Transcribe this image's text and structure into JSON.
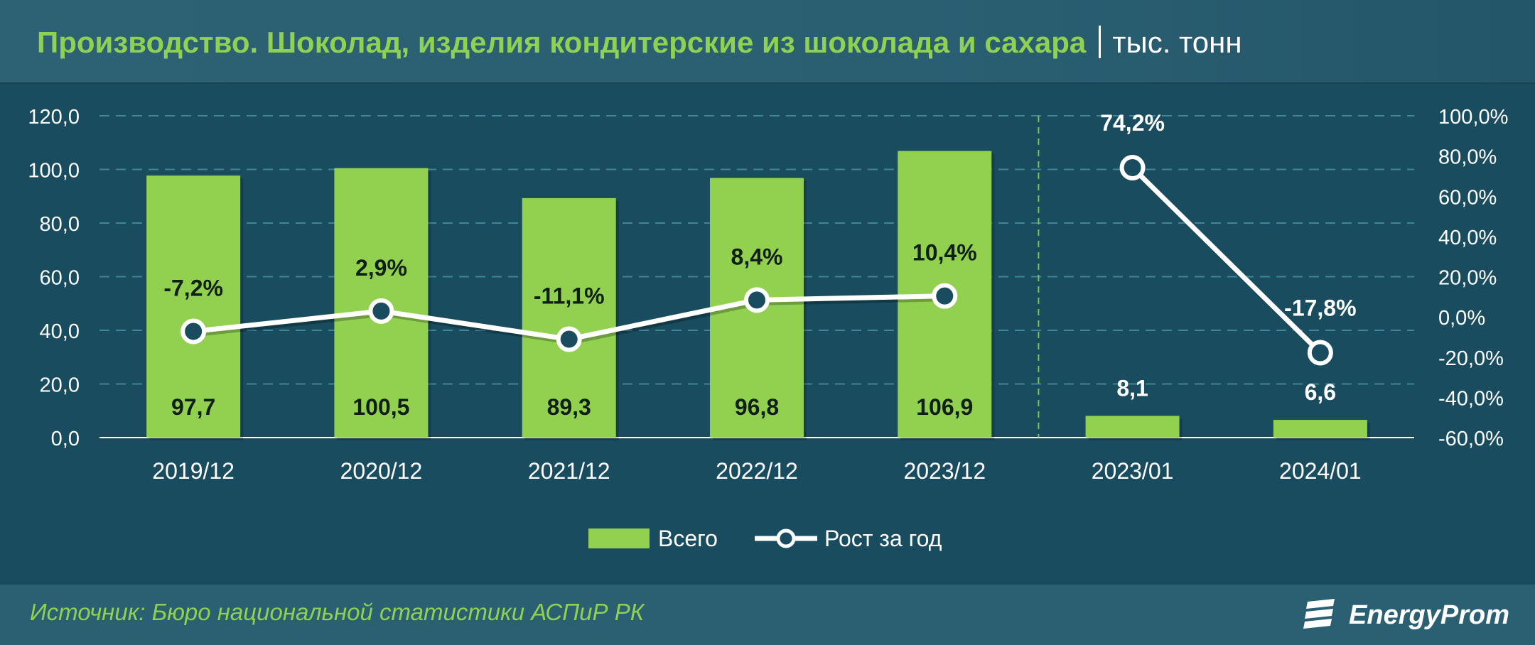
{
  "header": {
    "title": "Производство. Шоколад, изделия кондитерские из шоколада и сахара",
    "unit": "тыс. тонн"
  },
  "colors": {
    "bar": "#92d050",
    "line": "#ffffff",
    "background": "#194c5e",
    "title": "#8fd152",
    "grid": "#3f8597"
  },
  "chart_data": {
    "type": "bar",
    "categories": [
      "2019/12",
      "2020/12",
      "2021/12",
      "2022/12",
      "2023/12",
      "2023/01",
      "2024/01"
    ],
    "series": [
      {
        "name": "Всего",
        "type": "bar",
        "axis": "left",
        "values": [
          97.7,
          100.5,
          89.3,
          96.8,
          106.9,
          8.1,
          6.6
        ],
        "labels": [
          "97,7",
          "100,5",
          "89,3",
          "96,8",
          "106,9",
          "8,1",
          "6,6"
        ]
      },
      {
        "name": "Рост за год",
        "type": "line",
        "axis": "right",
        "segments": [
          [
            0,
            4
          ],
          [
            5,
            6
          ]
        ],
        "values": [
          -7.2,
          2.9,
          -11.1,
          8.4,
          10.4,
          74.2,
          -17.8
        ],
        "labels": [
          "-7,2%",
          "2,9%",
          "-11,1%",
          "8,4%",
          "10,4%",
          "74,2%",
          "-17,8%"
        ]
      }
    ],
    "y_left": {
      "ylim": [
        0,
        120
      ],
      "ticks": [
        "0,0",
        "20,0",
        "40,0",
        "60,0",
        "80,0",
        "100,0",
        "120,0"
      ]
    },
    "y_right": {
      "ylim": [
        -60,
        100
      ],
      "ticks": [
        "-60,0%",
        "-40,0%",
        "-20,0%",
        "0,0%",
        "20,0%",
        "40,0%",
        "60,0%",
        "80,0%",
        "100,0%"
      ]
    },
    "grid": true,
    "divider_after_index": 4,
    "legend": {
      "position": "bottom",
      "items": [
        "Всего",
        "Рост за год"
      ]
    }
  },
  "footer": {
    "source": "Источник: Бюро национальной статистики АСПиР РК",
    "logo_text": "EnergyProm"
  }
}
